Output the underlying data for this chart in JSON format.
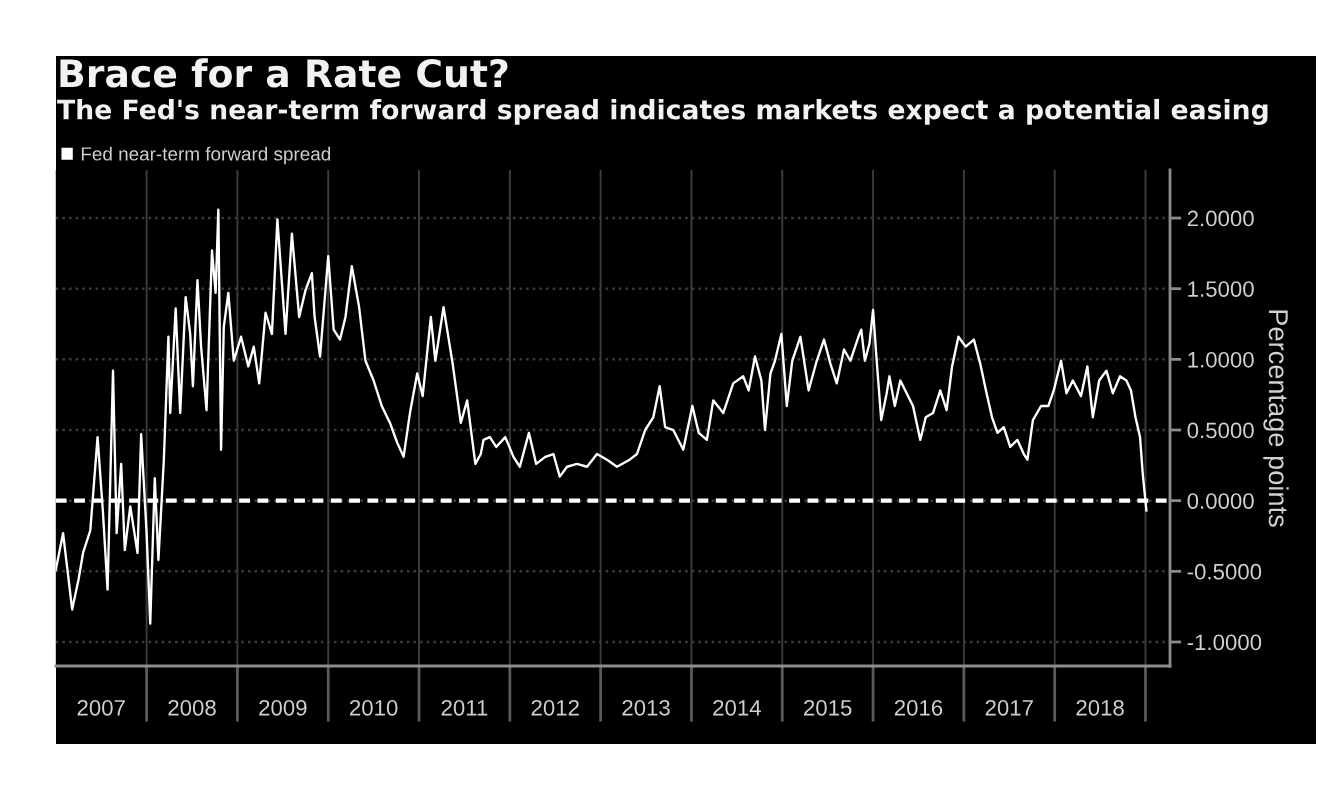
{
  "chart_data": {
    "type": "line",
    "title": "Brace for a Rate Cut?",
    "subtitle": "The Fed's near-term forward spread indicates markets expect a potential easing",
    "ylabel": "Percentage points",
    "x": [
      2007.0,
      2007.08,
      2007.18,
      2007.25,
      2007.3,
      2007.38,
      2007.46,
      2007.52,
      2007.57,
      2007.63,
      2007.67,
      2007.72,
      2007.76,
      2007.82,
      2007.9,
      2007.94,
      2008.0,
      2008.04,
      2008.09,
      2008.13,
      2008.19,
      2008.24,
      2008.26,
      2008.32,
      2008.37,
      2008.43,
      2008.48,
      2008.51,
      2008.56,
      2008.6,
      2008.66,
      2008.72,
      2008.76,
      2008.79,
      2008.82,
      2008.85,
      2008.9,
      2008.96,
      2009.04,
      2009.12,
      2009.18,
      2009.24,
      2009.31,
      2009.38,
      2009.44,
      2009.53,
      2009.6,
      2009.68,
      2009.75,
      2009.82,
      2009.85,
      2009.91,
      2010.0,
      2010.06,
      2010.13,
      2010.19,
      2010.26,
      2010.34,
      2010.41,
      2010.5,
      2010.59,
      2010.68,
      2010.76,
      2010.83,
      2010.9,
      2010.98,
      2011.04,
      2011.13,
      2011.18,
      2011.27,
      2011.37,
      2011.46,
      2011.53,
      2011.62,
      2011.68,
      2011.71,
      2011.78,
      2011.85,
      2011.95,
      2012.04,
      2012.11,
      2012.21,
      2012.29,
      2012.39,
      2012.48,
      2012.55,
      2012.63,
      2012.74,
      2012.85,
      2012.96,
      2013.07,
      2013.18,
      2013.32,
      2013.4,
      2013.49,
      2013.58,
      2013.65,
      2013.71,
      2013.8,
      2013.91,
      2014.01,
      2014.08,
      2014.17,
      2014.24,
      2014.35,
      2014.46,
      2014.57,
      2014.63,
      2014.7,
      2014.77,
      2014.81,
      2014.87,
      2014.92,
      2014.99,
      2015.05,
      2015.11,
      2015.2,
      2015.29,
      2015.38,
      2015.46,
      2015.53,
      2015.6,
      2015.68,
      2015.75,
      2015.85,
      2015.87,
      2015.91,
      2015.96,
      2016.0,
      2016.04,
      2016.09,
      2016.15,
      2016.18,
      2016.24,
      2016.3,
      2016.37,
      2016.44,
      2016.52,
      2016.58,
      2016.66,
      2016.74,
      2016.81,
      2016.87,
      2016.94,
      2017.02,
      2017.11,
      2017.18,
      2017.25,
      2017.31,
      2017.37,
      2017.44,
      2017.51,
      2017.59,
      2017.66,
      2017.7,
      2017.76,
      2017.85,
      2017.93,
      2017.99,
      2018.07,
      2018.13,
      2018.2,
      2018.29,
      2018.36,
      2018.42,
      2018.49,
      2018.57,
      2018.64,
      2018.72,
      2018.79,
      2018.84,
      2018.89,
      2018.94,
      2018.97,
      2019.01
    ],
    "series": [
      {
        "name": "Fed near-term forward spread",
        "color": "#ffffff",
        "values": [
          -0.49,
          -0.23,
          -0.77,
          -0.56,
          -0.37,
          -0.21,
          0.45,
          -0.09,
          -0.63,
          0.92,
          -0.23,
          0.26,
          -0.35,
          -0.04,
          -0.37,
          0.47,
          -0.23,
          -0.87,
          0.16,
          -0.42,
          0.29,
          1.16,
          0.62,
          1.36,
          0.62,
          1.44,
          1.18,
          0.81,
          1.56,
          1.09,
          0.64,
          1.77,
          1.47,
          2.06,
          0.36,
          1.23,
          1.47,
          0.99,
          1.16,
          0.95,
          1.09,
          0.83,
          1.33,
          1.18,
          1.99,
          1.18,
          1.89,
          1.3,
          1.49,
          1.61,
          1.3,
          1.02,
          1.73,
          1.21,
          1.14,
          1.3,
          1.66,
          1.37,
          0.99,
          0.85,
          0.67,
          0.55,
          0.41,
          0.31,
          0.62,
          0.9,
          0.74,
          1.3,
          0.99,
          1.37,
          0.97,
          0.55,
          0.71,
          0.26,
          0.33,
          0.43,
          0.45,
          0.38,
          0.45,
          0.31,
          0.24,
          0.48,
          0.26,
          0.31,
          0.33,
          0.17,
          0.24,
          0.26,
          0.24,
          0.33,
          0.29,
          0.24,
          0.29,
          0.33,
          0.5,
          0.59,
          0.81,
          0.52,
          0.5,
          0.36,
          0.67,
          0.48,
          0.43,
          0.71,
          0.62,
          0.83,
          0.88,
          0.78,
          1.02,
          0.85,
          0.5,
          0.9,
          0.99,
          1.18,
          0.67,
          0.99,
          1.16,
          0.78,
          0.99,
          1.14,
          0.97,
          0.83,
          1.07,
          0.99,
          1.18,
          1.21,
          0.99,
          1.11,
          1.35,
          0.99,
          0.57,
          0.76,
          0.88,
          0.67,
          0.85,
          0.76,
          0.67,
          0.43,
          0.59,
          0.62,
          0.78,
          0.64,
          0.95,
          1.16,
          1.09,
          1.14,
          0.97,
          0.76,
          0.59,
          0.48,
          0.52,
          0.38,
          0.43,
          0.33,
          0.29,
          0.57,
          0.67,
          0.67,
          0.78,
          0.99,
          0.76,
          0.85,
          0.74,
          0.95,
          0.59,
          0.85,
          0.92,
          0.76,
          0.88,
          0.85,
          0.78,
          0.59,
          0.45,
          0.19,
          -0.07
        ]
      }
    ],
    "xlim": [
      2007.0,
      2019.27
    ],
    "xticks": [
      {
        "value": 2007.5,
        "label": "2007"
      },
      {
        "value": 2008,
        "label": null
      },
      {
        "value": 2008.5,
        "label": "2008"
      },
      {
        "value": 2009,
        "label": null
      },
      {
        "value": 2009.5,
        "label": "2009"
      },
      {
        "value": 2010,
        "label": null
      },
      {
        "value": 2010.5,
        "label": "2010"
      },
      {
        "value": 2011,
        "label": null
      },
      {
        "value": 2011.5,
        "label": "2011"
      },
      {
        "value": 2012,
        "label": null
      },
      {
        "value": 2012.5,
        "label": "2012"
      },
      {
        "value": 2013,
        "label": null
      },
      {
        "value": 2013.5,
        "label": "2013"
      },
      {
        "value": 2014,
        "label": null
      },
      {
        "value": 2014.5,
        "label": "2014"
      },
      {
        "value": 2015,
        "label": null
      },
      {
        "value": 2015.5,
        "label": "2015"
      },
      {
        "value": 2016,
        "label": null
      },
      {
        "value": 2016.5,
        "label": "2016"
      },
      {
        "value": 2017,
        "label": null
      },
      {
        "value": 2017.5,
        "label": "2017"
      },
      {
        "value": 2018,
        "label": null
      },
      {
        "value": 2018.5,
        "label": "2018"
      },
      {
        "value": 2019,
        "label": null
      }
    ],
    "ylim": [
      -1.17,
      2.34
    ],
    "yticks": [
      {
        "value": -1,
        "label": "-1.0000"
      },
      {
        "value": -0.5,
        "label": "-0.5000"
      },
      {
        "value": 0,
        "label": "0.0000"
      },
      {
        "value": 0.5,
        "label": "0.5000"
      },
      {
        "value": 1,
        "label": "1.0000"
      },
      {
        "value": 1.5,
        "label": "1.5000"
      },
      {
        "value": 2,
        "label": "2.0000"
      }
    ],
    "ref_lines": [
      {
        "axis": "y",
        "value": 0,
        "color": "#ffffff",
        "line_style": "dashed"
      }
    ],
    "grid": true,
    "legend": "top left"
  }
}
